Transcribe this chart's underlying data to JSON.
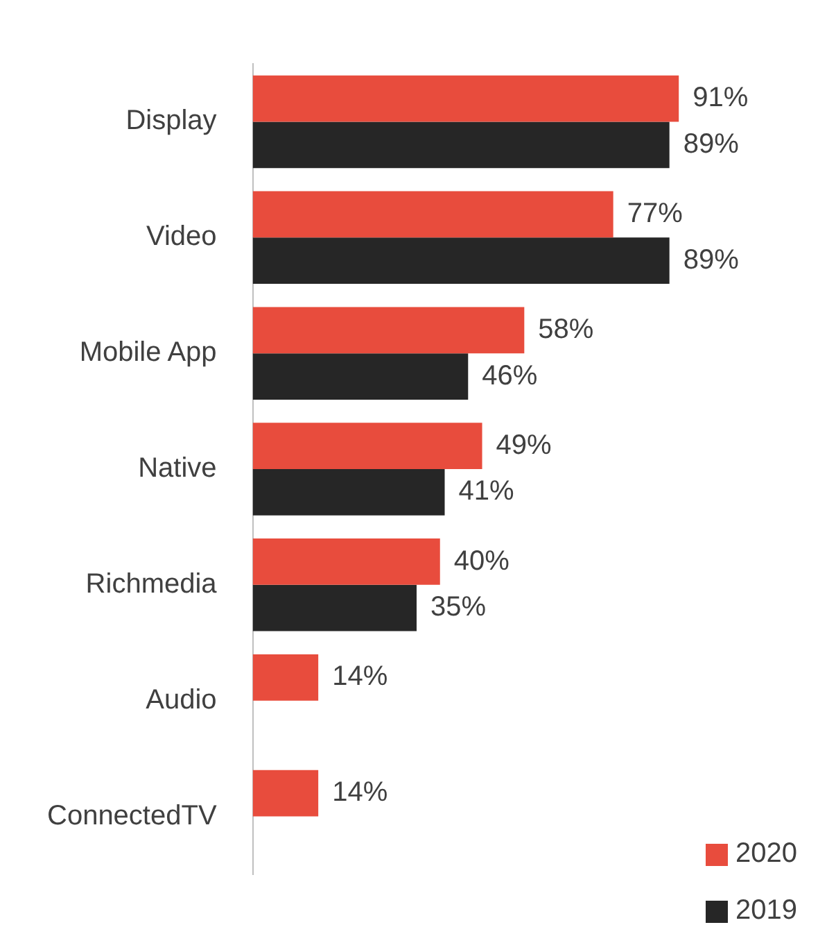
{
  "chart_data": {
    "type": "bar",
    "orientation": "horizontal",
    "categories": [
      "Display",
      "Video",
      "Mobile App",
      "Native",
      "Richmedia",
      "Audio",
      "ConnectedTV"
    ],
    "series": [
      {
        "name": "2020",
        "color": "#e84c3d",
        "values": [
          91,
          77,
          58,
          49,
          40,
          14,
          14
        ],
        "value_labels": [
          "91%",
          "77%",
          "58%",
          "49%",
          "40%",
          "14%",
          "14%"
        ]
      },
      {
        "name": "2019",
        "color": "#262626",
        "values": [
          89,
          89,
          46,
          41,
          35,
          null,
          null
        ],
        "value_labels": [
          "89%",
          "89%",
          "46%",
          "41%",
          "35%",
          null,
          null
        ]
      }
    ],
    "legend": "bottom right",
    "grid": false
  }
}
